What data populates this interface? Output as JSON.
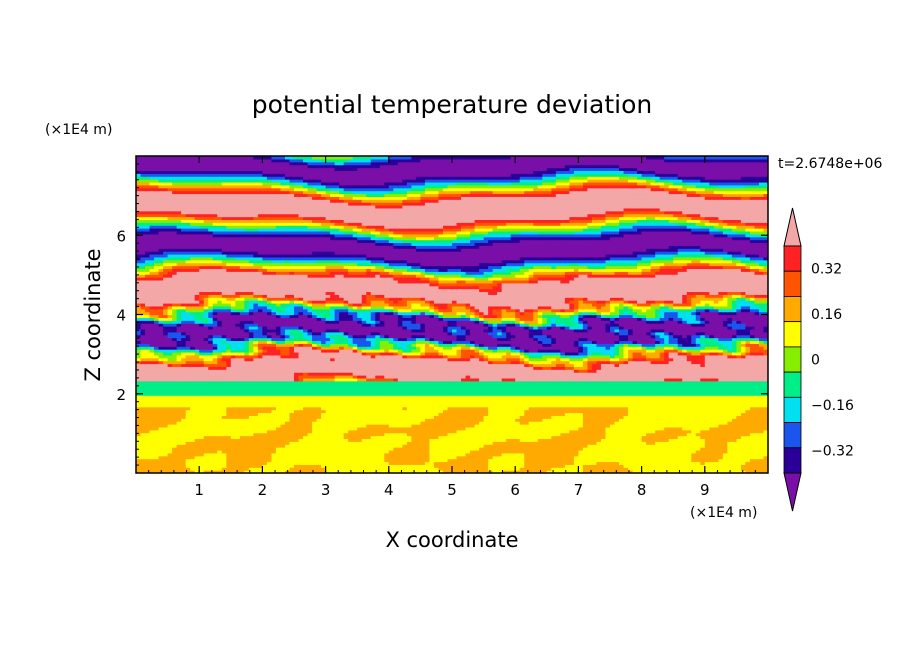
{
  "chart_data": {
    "type": "heatmap",
    "title": "potential temperature deviation",
    "xlabel": "X coordinate",
    "ylabel": "Z coordinate",
    "x_unit": "(×1E4 m)",
    "y_unit": "(×1E4 m)",
    "xlim": [
      0,
      10
    ],
    "ylim": [
      0,
      8
    ],
    "x_ticks": [
      "1",
      "2",
      "3",
      "4",
      "5",
      "6",
      "7",
      "8",
      "9"
    ],
    "y_ticks": [
      "2",
      "4",
      "6"
    ],
    "time_label": "t=2.6748e+06",
    "colorbar": {
      "levels": [
        -0.4,
        -0.32,
        -0.24,
        -0.16,
        -0.08,
        0,
        0.08,
        0.16,
        0.24,
        0.32,
        0.4
      ],
      "tick_labels": [
        "0.32",
        "0.16",
        "0",
        "−0.16",
        "−0.32"
      ],
      "tick_values": [
        0.32,
        0.16,
        0,
        -0.16,
        -0.32
      ],
      "colors": [
        "#7a0fa8",
        "#2a0099",
        "#1a55ee",
        "#00e0f0",
        "#00ee88",
        "#88ee00",
        "#ffff00",
        "#ffaa00",
        "#ff5500",
        "#ff2222",
        "#f4a7a7"
      ],
      "extend": "both"
    },
    "field_description": {
      "lower_layer_z": [
        0,
        2.0
      ],
      "lower_layer_values": [
        0.0,
        0.08
      ],
      "stratified_layer_z": [
        2.0,
        8.0
      ],
      "stratified_values": [
        -0.4,
        0.4
      ]
    }
  },
  "icons": {
    "colorbar_upper_extension": "triangle-up",
    "colorbar_lower_extension": "triangle-down"
  }
}
